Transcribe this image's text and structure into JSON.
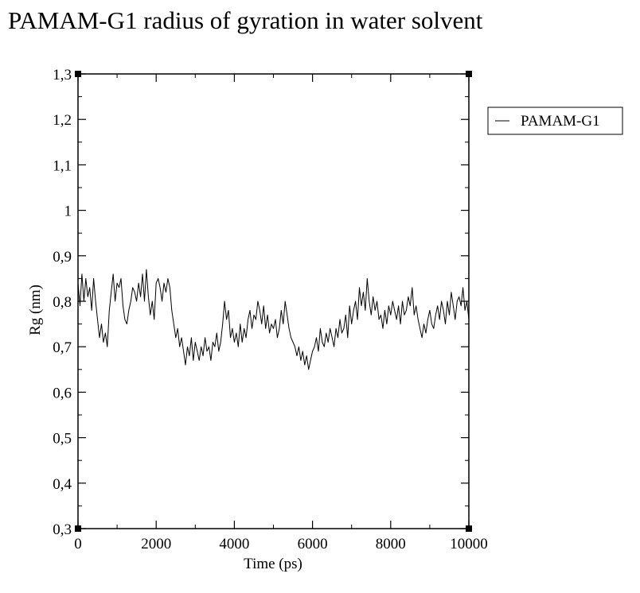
{
  "chart_data": {
    "type": "line",
    "title": "PAMAM-G1 radius of gyration in water solvent",
    "xlabel": "Time (ps)",
    "ylabel": "Rg (nm)",
    "xlim": [
      0,
      10000
    ],
    "ylim": [
      0.3,
      1.3
    ],
    "xticks": [
      0,
      2000,
      4000,
      6000,
      8000,
      10000
    ],
    "xtick_labels": [
      "0",
      "2000",
      "4000",
      "6000",
      "8000",
      "10000"
    ],
    "yticks": [
      0.3,
      0.4,
      0.5,
      0.6,
      0.7,
      0.8,
      0.9,
      1.0,
      1.1,
      1.2,
      1.3
    ],
    "ytick_labels": [
      "0,3",
      "0,4",
      "0,5",
      "0,6",
      "0,7",
      "0,8",
      "0,9",
      "1",
      "1,1",
      "1,2",
      "1,3"
    ],
    "grid": false,
    "legend_position": "outside-right",
    "line_color": "#000000",
    "series": [
      {
        "name": "PAMAM-G1",
        "x": [
          0,
          50,
          100,
          150,
          200,
          250,
          300,
          350,
          400,
          450,
          500,
          550,
          600,
          650,
          700,
          750,
          800,
          850,
          900,
          950,
          1000,
          1050,
          1100,
          1150,
          1200,
          1250,
          1300,
          1350,
          1400,
          1450,
          1500,
          1550,
          1600,
          1650,
          1700,
          1750,
          1800,
          1850,
          1900,
          1950,
          2000,
          2050,
          2100,
          2150,
          2200,
          2250,
          2300,
          2350,
          2400,
          2450,
          2500,
          2550,
          2600,
          2650,
          2700,
          2750,
          2800,
          2850,
          2900,
          2950,
          3000,
          3050,
          3100,
          3150,
          3200,
          3250,
          3300,
          3350,
          3400,
          3450,
          3500,
          3550,
          3600,
          3650,
          3700,
          3750,
          3800,
          3850,
          3900,
          3950,
          4000,
          4050,
          4100,
          4150,
          4200,
          4250,
          4300,
          4350,
          4400,
          4450,
          4500,
          4550,
          4600,
          4650,
          4700,
          4750,
          4800,
          4850,
          4900,
          4950,
          5000,
          5050,
          5100,
          5150,
          5200,
          5250,
          5300,
          5350,
          5400,
          5450,
          5500,
          5550,
          5600,
          5650,
          5700,
          5750,
          5800,
          5850,
          5900,
          5950,
          6000,
          6050,
          6100,
          6150,
          6200,
          6250,
          6300,
          6350,
          6400,
          6450,
          6500,
          6550,
          6600,
          6650,
          6700,
          6750,
          6800,
          6850,
          6900,
          6950,
          7000,
          7050,
          7100,
          7150,
          7200,
          7250,
          7300,
          7350,
          7400,
          7450,
          7500,
          7550,
          7600,
          7650,
          7700,
          7750,
          7800,
          7850,
          7900,
          7950,
          8000,
          8050,
          8100,
          8150,
          8200,
          8250,
          8300,
          8350,
          8400,
          8450,
          8500,
          8550,
          8600,
          8650,
          8700,
          8750,
          8800,
          8850,
          8900,
          8950,
          9000,
          9050,
          9100,
          9150,
          9200,
          9250,
          9300,
          9350,
          9400,
          9450,
          9500,
          9550,
          9600,
          9650,
          9700,
          9750,
          9800,
          9850,
          9900,
          9950,
          10000
        ],
        "y": [
          0.84,
          0.79,
          0.86,
          0.8,
          0.85,
          0.81,
          0.83,
          0.78,
          0.85,
          0.8,
          0.76,
          0.72,
          0.75,
          0.71,
          0.73,
          0.7,
          0.78,
          0.82,
          0.86,
          0.8,
          0.84,
          0.83,
          0.85,
          0.79,
          0.76,
          0.75,
          0.78,
          0.8,
          0.83,
          0.82,
          0.8,
          0.84,
          0.81,
          0.86,
          0.8,
          0.87,
          0.81,
          0.77,
          0.8,
          0.76,
          0.84,
          0.85,
          0.83,
          0.8,
          0.84,
          0.82,
          0.85,
          0.83,
          0.78,
          0.75,
          0.72,
          0.74,
          0.7,
          0.72,
          0.69,
          0.66,
          0.7,
          0.68,
          0.72,
          0.67,
          0.71,
          0.69,
          0.67,
          0.7,
          0.68,
          0.72,
          0.69,
          0.7,
          0.67,
          0.71,
          0.7,
          0.73,
          0.69,
          0.71,
          0.75,
          0.8,
          0.76,
          0.78,
          0.72,
          0.74,
          0.71,
          0.73,
          0.7,
          0.75,
          0.71,
          0.74,
          0.72,
          0.76,
          0.78,
          0.74,
          0.77,
          0.76,
          0.8,
          0.78,
          0.75,
          0.79,
          0.74,
          0.77,
          0.73,
          0.75,
          0.74,
          0.76,
          0.72,
          0.74,
          0.78,
          0.75,
          0.8,
          0.77,
          0.74,
          0.72,
          0.71,
          0.7,
          0.68,
          0.7,
          0.67,
          0.69,
          0.66,
          0.68,
          0.65,
          0.67,
          0.69,
          0.7,
          0.72,
          0.69,
          0.74,
          0.71,
          0.7,
          0.73,
          0.71,
          0.74,
          0.72,
          0.7,
          0.74,
          0.72,
          0.76,
          0.73,
          0.74,
          0.77,
          0.72,
          0.79,
          0.75,
          0.78,
          0.8,
          0.76,
          0.83,
          0.79,
          0.82,
          0.78,
          0.85,
          0.8,
          0.77,
          0.81,
          0.78,
          0.8,
          0.76,
          0.77,
          0.74,
          0.78,
          0.75,
          0.79,
          0.77,
          0.8,
          0.78,
          0.76,
          0.79,
          0.75,
          0.8,
          0.77,
          0.78,
          0.81,
          0.79,
          0.83,
          0.77,
          0.79,
          0.76,
          0.74,
          0.72,
          0.75,
          0.73,
          0.76,
          0.78,
          0.75,
          0.74,
          0.77,
          0.79,
          0.76,
          0.8,
          0.78,
          0.75,
          0.8,
          0.77,
          0.82,
          0.79,
          0.76,
          0.8,
          0.81,
          0.79,
          0.83,
          0.78,
          0.8,
          0.76
        ]
      }
    ]
  }
}
